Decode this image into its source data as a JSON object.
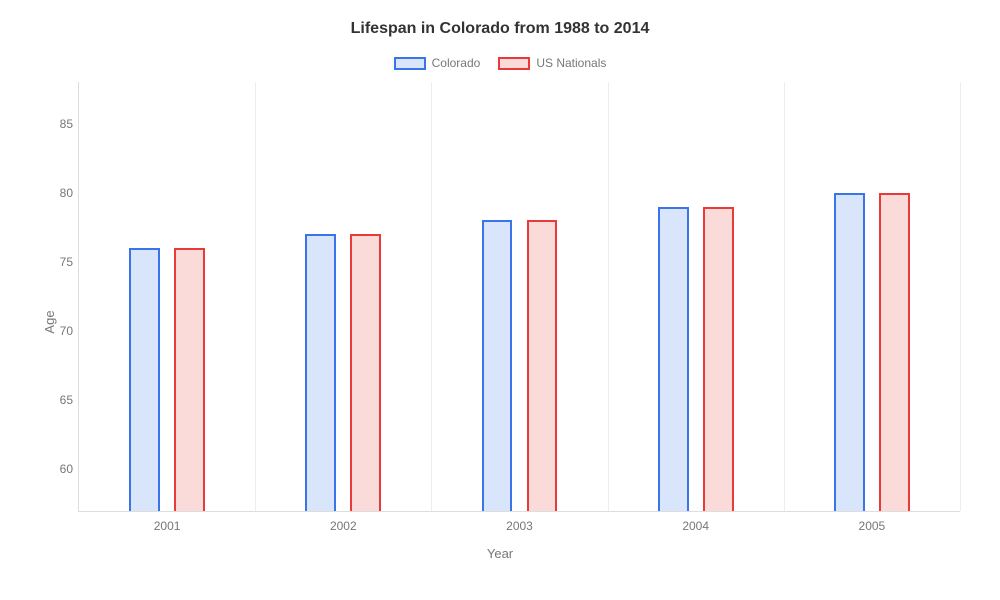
{
  "chart": {
    "type": "bar",
    "title": "Lifespan in Colorado from 1988 to 2014",
    "title_fontsize": 16,
    "xlabel": "Year",
    "ylabel": "Age",
    "label_fontsize": 13,
    "tick_fontsize": 12,
    "background_color": "#ffffff",
    "grid_color": "#eeeeee",
    "axis_color": "#dddddd",
    "text_color": "#777777",
    "ylim": [
      57,
      88
    ],
    "yticks": [
      60,
      65,
      70,
      75,
      80,
      85
    ],
    "categories": [
      "2001",
      "2002",
      "2003",
      "2004",
      "2005"
    ],
    "bar_width_pct": 3.5,
    "bar_gap_pct": 1.6,
    "series": [
      {
        "name": "Colorado",
        "values": [
          76,
          77,
          78,
          79,
          80
        ],
        "border_color": "#3a74e8",
        "fill_color": "#d9e5fb"
      },
      {
        "name": "US Nationals",
        "values": [
          76,
          77,
          78,
          79,
          80
        ],
        "border_color": "#e83a3a",
        "fill_color": "#fbdada"
      }
    ],
    "legend": {
      "position": "top-center",
      "swatch_width": 32,
      "swatch_height": 13
    }
  }
}
